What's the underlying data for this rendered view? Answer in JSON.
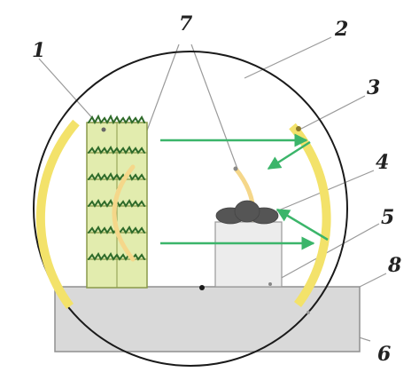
{
  "labels": {
    "n1": "1",
    "n2": "2",
    "n3": "3",
    "n4": "4",
    "n5": "5",
    "n6": "6",
    "n7": "7",
    "n8": "8"
  },
  "colors": {
    "background": "#ffffff",
    "circle_outline": "#1a1a1a",
    "yellow_arc": "#f3e26a",
    "faint_arc": "#f5d78a",
    "arrow_green": "#3bb56a",
    "rack_fill": "#e2ecae",
    "rack_stroke": "#8a9a4a",
    "plant_green": "#2f6b2a",
    "base_fill": "#d9d9d9",
    "box_fill": "#ececec",
    "stone_fill": "#555555",
    "leader_line": "#9a9a9a"
  },
  "components": {
    "rack_shelves": 6,
    "arrows": 4
  }
}
